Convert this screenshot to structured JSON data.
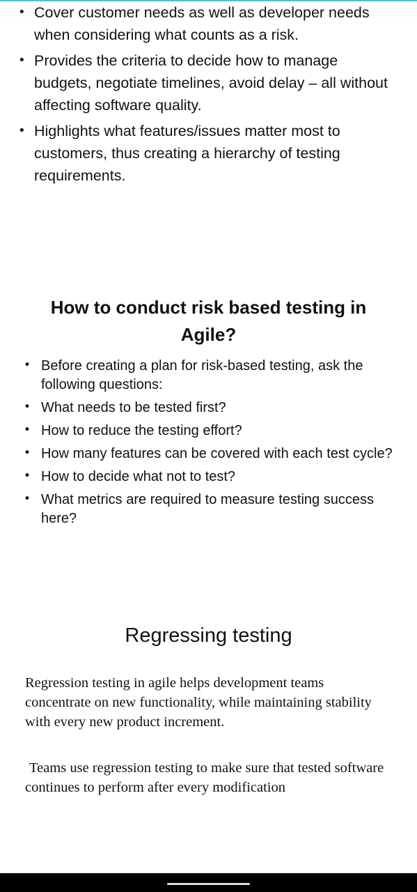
{
  "intro_bullets": [
    "Cover customer needs as well as developer needs when considering what counts as a risk.",
    "Provides the criteria to decide how to manage budgets, negotiate timelines, avoid delay – all without affecting software quality.",
    "Highlights what features/issues matter most to customers, thus creating a hierarchy of testing requirements."
  ],
  "risk_section": {
    "heading": "How to conduct risk based testing in Agile?",
    "bullets": [
      "Before creating a plan for risk-based testing, ask the following questions:",
      "What needs to be tested first?",
      "How to reduce the testing effort?",
      "How many features can be covered with each test cycle?",
      "How to decide what not to test?",
      "What metrics are required to measure testing success here?"
    ]
  },
  "regression_section": {
    "title": "Regressing testing",
    "paragraph1": "Regression testing in agile helps development teams concentrate on new functionality, while maintaining stability with every new product increment.",
    "paragraph2": "Teams use regression testing to make sure that tested software continues to perform after every modification"
  },
  "bullet_glyph": "•",
  "colors": {
    "accent_line": "#4fc3c9",
    "text": "#111111",
    "nav_bar": "#000000"
  }
}
